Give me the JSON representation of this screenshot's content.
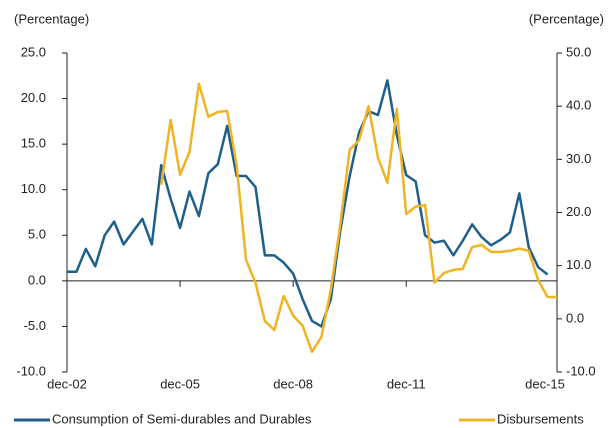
{
  "chart_data": {
    "type": "line",
    "y_label": "(Percentage)",
    "y2_label": "(Percentage)",
    "categories": [
      "dec-02",
      null,
      null,
      null,
      null,
      null,
      null,
      null,
      null,
      null,
      null,
      null,
      "dec-05",
      null,
      null,
      null,
      null,
      null,
      null,
      null,
      null,
      null,
      null,
      null,
      "dec-08",
      null,
      null,
      null,
      null,
      null,
      null,
      null,
      null,
      null,
      null,
      null,
      "dec-11",
      null,
      null,
      null,
      null,
      null,
      null,
      null,
      null,
      null,
      null,
      null,
      null,
      null,
      null,
      null,
      "dec-15"
    ],
    "ylim": [
      -10,
      25
    ],
    "yticks": [
      {
        "value": 25,
        "label": "25.0"
      },
      {
        "value": 20,
        "label": "20.0"
      },
      {
        "value": 15,
        "label": "15.0"
      },
      {
        "value": 10,
        "label": "10.0"
      },
      {
        "value": 5,
        "label": "5.0"
      },
      {
        "value": 0,
        "label": "0.0"
      },
      {
        "value": -5,
        "label": "-5.0"
      },
      {
        "value": -10,
        "label": "-10.0"
      }
    ],
    "y2lim": [
      -10,
      50
    ],
    "y2ticks": [
      {
        "value": 50,
        "label": "50.0"
      },
      {
        "value": 40,
        "label": "40.0"
      },
      {
        "value": 30,
        "label": "30.0"
      },
      {
        "value": 20,
        "label": "20.0"
      },
      {
        "value": 10,
        "label": "10.0"
      },
      {
        "value": 0,
        "label": "0.0"
      },
      {
        "value": -10,
        "label": "-10.0"
      }
    ],
    "series": [
      {
        "name": "Consumption of Semi-durables and Durables",
        "color": "#1f5f8b",
        "axis": "y",
        "values": [
          1.0,
          1.0,
          3.5,
          1.6,
          5.0,
          6.5,
          4.0,
          5.4,
          6.8,
          4.0,
          12.7,
          9.0,
          5.8,
          9.8,
          7.1,
          11.8,
          12.8,
          17.0,
          11.5,
          11.5,
          10.3,
          2.8,
          2.8,
          2.0,
          0.8,
          -2.0,
          -4.4,
          -5.0,
          -2.0,
          5.5,
          11.5,
          16.3,
          18.6,
          18.2,
          22.0,
          16.0,
          11.6,
          10.9,
          5.0,
          4.2,
          4.4,
          2.8,
          4.4,
          6.2,
          4.8,
          3.9,
          4.5,
          5.3,
          9.6,
          3.7,
          1.5,
          0.7,
          null
        ]
      },
      {
        "name": "Disbursements",
        "color": "#f0b323",
        "axis": "y2",
        "values": [
          null,
          null,
          null,
          null,
          null,
          null,
          null,
          null,
          null,
          null,
          25.2,
          37.4,
          27.1,
          31.4,
          44.2,
          38.0,
          38.9,
          39.1,
          28.9,
          11.1,
          6.8,
          -0.4,
          -2.1,
          4.3,
          0.6,
          -1.3,
          -6.2,
          -3.4,
          5.5,
          17.7,
          31.8,
          33.6,
          40.0,
          30.3,
          25.6,
          39.5,
          19.7,
          21.1,
          21.4,
          6.8,
          8.6,
          9.2,
          9.4,
          13.5,
          13.9,
          12.6,
          12.6,
          12.8,
          13.2,
          12.8,
          7.3,
          4.1,
          4.1
        ]
      }
    ]
  }
}
